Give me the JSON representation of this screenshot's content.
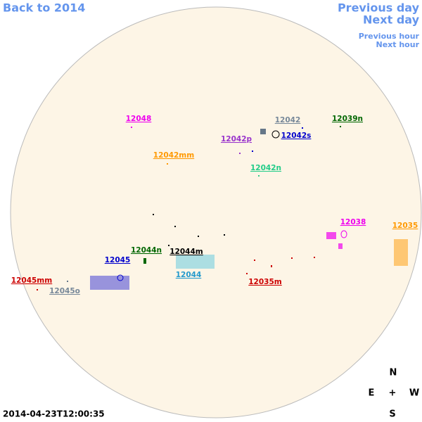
{
  "nav": {
    "back": "Back to 2014",
    "previous_day": "Previous day",
    "next_day": "Next day",
    "previous_hour": "Previous hour",
    "next_hour": "Next hour"
  },
  "regions": [
    {
      "label": "12048"
    },
    {
      "label": "12042"
    },
    {
      "label": "12039n"
    },
    {
      "label": "12042p"
    },
    {
      "label": "12042s"
    },
    {
      "label": "12042mm"
    },
    {
      "label": "12042n"
    },
    {
      "label": "12038"
    },
    {
      "label": "12035"
    },
    {
      "label": "12044n"
    },
    {
      "label": "12044m"
    },
    {
      "label": "12045"
    },
    {
      "label": "12044"
    },
    {
      "label": "12045mm"
    },
    {
      "label": "12045o"
    },
    {
      "label": "12035m"
    }
  ],
  "compass": {
    "north": "N",
    "east": "E",
    "center": "+",
    "west": "W",
    "south": "S"
  },
  "timestamp": "2014-04-23T12:00:35"
}
